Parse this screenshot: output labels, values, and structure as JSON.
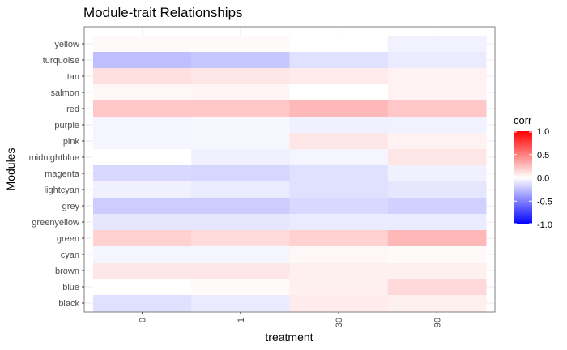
{
  "chart_data": {
    "type": "heatmap",
    "title": "Module-trait Relationships",
    "xlabel": "treatment",
    "ylabel": "Modules",
    "x": [
      "0",
      "1",
      "30",
      "90"
    ],
    "y": [
      "yellow",
      "turquoise",
      "tan",
      "salmon",
      "red",
      "purple",
      "pink",
      "midnightblue",
      "magenta",
      "lightcyan",
      "grey",
      "greenyellow",
      "green",
      "cyan",
      "brown",
      "blue",
      "black"
    ],
    "values": [
      [
        0.02,
        0.02,
        0.0,
        -0.05
      ],
      [
        -0.25,
        -0.22,
        -0.12,
        -0.08
      ],
      [
        0.12,
        0.1,
        0.08,
        0.05
      ],
      [
        0.03,
        0.04,
        0.0,
        0.05
      ],
      [
        0.22,
        0.22,
        0.28,
        0.22
      ],
      [
        -0.04,
        -0.03,
        -0.06,
        -0.05
      ],
      [
        -0.04,
        -0.03,
        0.1,
        0.05
      ],
      [
        0.0,
        -0.06,
        -0.04,
        0.1
      ],
      [
        -0.15,
        -0.16,
        -0.12,
        -0.06
      ],
      [
        -0.06,
        -0.08,
        -0.12,
        -0.1
      ],
      [
        -0.2,
        -0.2,
        -0.15,
        -0.18
      ],
      [
        -0.1,
        -0.1,
        -0.08,
        -0.08
      ],
      [
        0.18,
        0.14,
        0.18,
        0.28
      ],
      [
        -0.04,
        -0.04,
        0.03,
        0.02
      ],
      [
        0.1,
        0.1,
        0.06,
        0.06
      ],
      [
        0.0,
        0.02,
        0.06,
        0.15
      ],
      [
        -0.12,
        -0.08,
        0.08,
        0.06
      ]
    ],
    "legend": {
      "title": "corr",
      "ticks": [
        "1.0",
        "0.5",
        "0.0",
        "-0.5",
        "-1.0"
      ],
      "range": [
        -1,
        1
      ],
      "placement": "right"
    },
    "colors": {
      "low": "#0000ff",
      "mid": "#ffffff",
      "high": "#ff0000",
      "panel_border": "#7f7f7f",
      "grid": "#ebebeb"
    },
    "grid": true
  }
}
